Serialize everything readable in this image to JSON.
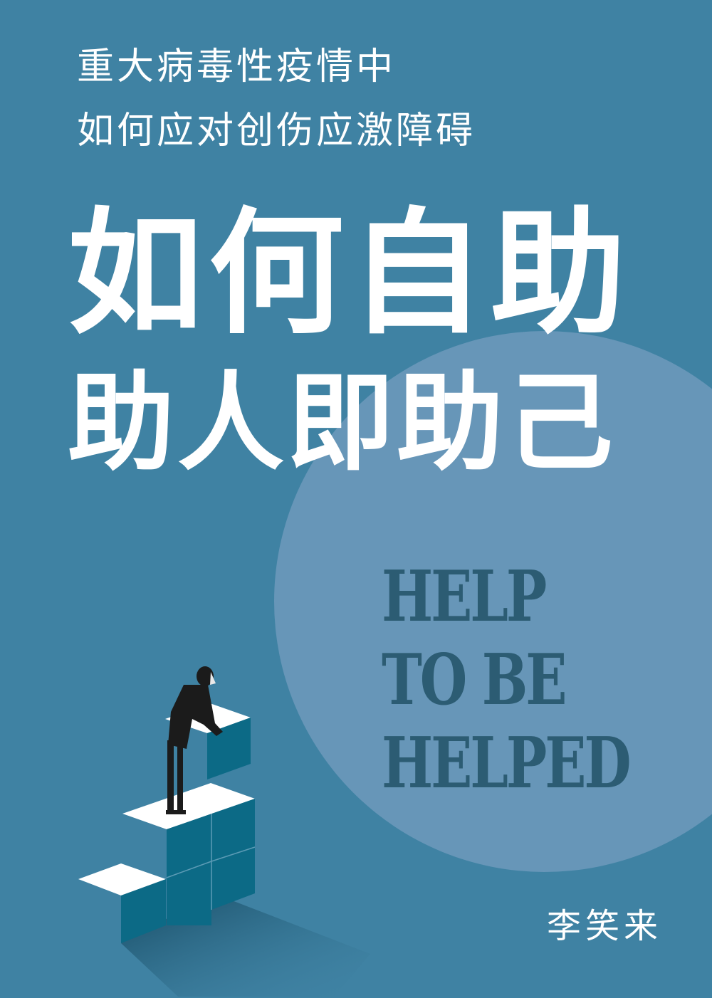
{
  "cover": {
    "subtitle_line1": "重大病毒性疫情中",
    "subtitle_line2": "如何应对创伤应激障碍",
    "title_line1": "如何自助",
    "title_line2": "助人即助己",
    "english_lines": [
      "HELP",
      "TO BE",
      "HELPED"
    ],
    "author": "李笑来"
  },
  "colors": {
    "background": "#3f82a3",
    "circle": "#6796b8",
    "english_text": "#2c5c73",
    "cube_face": "#0c6a86",
    "cube_top": "#ffffff",
    "figure": "#1b1b1b"
  },
  "icons": {
    "illustration": "man-stacking-cubes-illustration"
  }
}
